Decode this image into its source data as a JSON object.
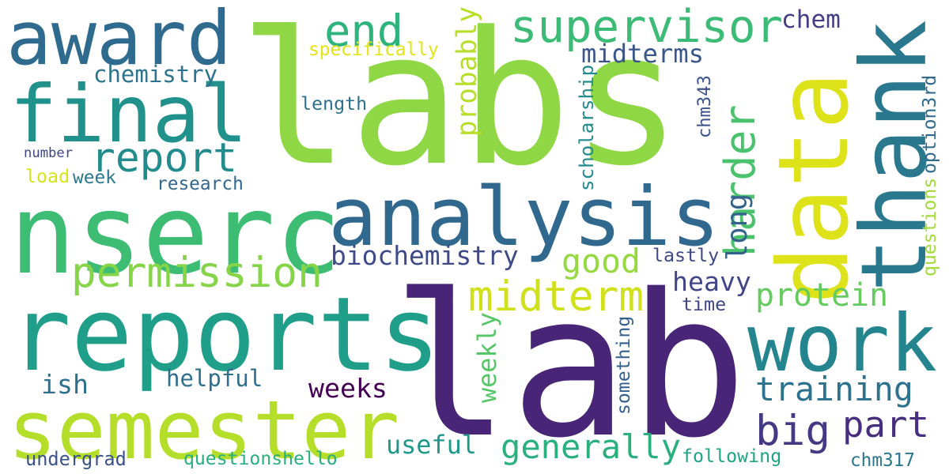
{
  "words": [
    {
      "text": "labs",
      "color": "#8fd744"
    },
    {
      "text": "lab",
      "color": "#482576"
    },
    {
      "text": "reports",
      "color": "#1f9e89"
    },
    {
      "text": "nserc",
      "color": "#3dbc74"
    },
    {
      "text": "analysis",
      "color": "#31688e"
    },
    {
      "text": "award",
      "color": "#2f6b8e"
    },
    {
      "text": "final",
      "color": "#21918c"
    },
    {
      "text": "semester",
      "color": "#b5de2b"
    },
    {
      "text": "data",
      "color": "#dde318"
    },
    {
      "text": "thank",
      "color": "#2a788e"
    },
    {
      "text": "work",
      "color": "#25858e"
    },
    {
      "text": "supervisor",
      "color": "#3bbb75"
    },
    {
      "text": "permission",
      "color": "#86d549"
    },
    {
      "text": "report",
      "color": "#228c8d"
    },
    {
      "text": "end",
      "color": "#2eb37c"
    },
    {
      "text": "midterm",
      "color": "#d0e11c"
    },
    {
      "text": "part",
      "color": "#472f7d"
    },
    {
      "text": "big",
      "color": "#443983"
    },
    {
      "text": "generally",
      "color": "#2ab07f"
    },
    {
      "text": "training",
      "color": "#2c728e"
    },
    {
      "text": "harder",
      "color": "#4ac16d"
    },
    {
      "text": "long",
      "color": "#33628d"
    },
    {
      "text": "protein",
      "color": "#65cb5e"
    },
    {
      "text": "good",
      "color": "#95d840"
    },
    {
      "text": "heavy",
      "color": "#404688"
    },
    {
      "text": "biochemistry",
      "color": "#3e4a89"
    },
    {
      "text": "midterms",
      "color": "#39568c"
    },
    {
      "text": "chemistry",
      "color": "#2c738e"
    },
    {
      "text": "probably",
      "color": "#b8de29"
    },
    {
      "text": "weeks",
      "color": "#440154"
    },
    {
      "text": "useful",
      "color": "#1f988b"
    },
    {
      "text": "weekly",
      "color": "#56c667"
    },
    {
      "text": "helpful",
      "color": "#2e6e8e"
    },
    {
      "text": "ish",
      "color": "#2d708e"
    },
    {
      "text": "chem",
      "color": "#433e85"
    },
    {
      "text": "specifically",
      "color": "#e2e418"
    },
    {
      "text": "length",
      "color": "#2d708e"
    },
    {
      "text": "scholarship",
      "color": "#238a8d"
    },
    {
      "text": "chm343",
      "color": "#3b528b"
    },
    {
      "text": "number",
      "color": "#3f4788"
    },
    {
      "text": "week",
      "color": "#2a778e"
    },
    {
      "text": "load",
      "color": "#d8e219"
    },
    {
      "text": "research",
      "color": "#31668e"
    },
    {
      "text": "lastly",
      "color": "#3f4889"
    },
    {
      "text": "time",
      "color": "#404588"
    },
    {
      "text": "something",
      "color": "#34608d"
    },
    {
      "text": "undergrad",
      "color": "#3b528b"
    },
    {
      "text": "questionshello",
      "color": "#29af7f"
    },
    {
      "text": "following",
      "color": "#20a386"
    },
    {
      "text": "chm317",
      "color": "#2a768e"
    },
    {
      "text": "questions",
      "color": "#a2da37"
    },
    {
      "text": "option3rd",
      "color": "#306a8e"
    }
  ]
}
